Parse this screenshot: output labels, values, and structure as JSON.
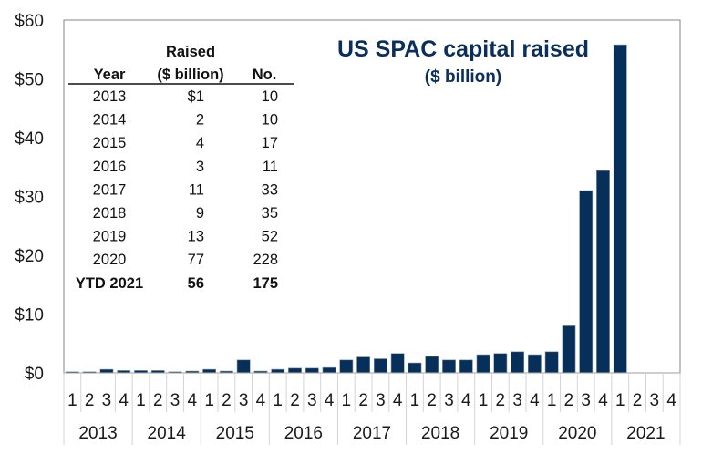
{
  "chart_data": {
    "type": "bar",
    "title": "US SPAC capital raised",
    "subtitle": "($ billion)",
    "xlabel": "",
    "ylabel": "",
    "ylim": [
      0,
      60
    ],
    "yticks": [
      0,
      10,
      20,
      30,
      40,
      50,
      60
    ],
    "ytick_labels": [
      "$0",
      "$10",
      "$20",
      "$30",
      "$40",
      "$50",
      "$60"
    ],
    "grid": false,
    "legend": "none",
    "bar_color": "#06305a",
    "years": [
      "2013",
      "2014",
      "2015",
      "2016",
      "2017",
      "2018",
      "2019",
      "2020",
      "2021"
    ],
    "quarter_labels": [
      "1",
      "2",
      "3",
      "4"
    ],
    "categories": [
      "2013 Q1",
      "2013 Q2",
      "2013 Q3",
      "2013 Q4",
      "2014 Q1",
      "2014 Q2",
      "2014 Q3",
      "2014 Q4",
      "2015 Q1",
      "2015 Q2",
      "2015 Q3",
      "2015 Q4",
      "2016 Q1",
      "2016 Q2",
      "2016 Q3",
      "2016 Q4",
      "2017 Q1",
      "2017 Q2",
      "2017 Q3",
      "2017 Q4",
      "2018 Q1",
      "2018 Q2",
      "2018 Q3",
      "2018 Q4",
      "2019 Q1",
      "2019 Q2",
      "2019 Q3",
      "2019 Q4",
      "2020 Q1",
      "2020 Q2",
      "2020 Q3",
      "2020 Q4",
      "2021 Q1",
      "2021 Q2",
      "2021 Q3",
      "2021 Q4"
    ],
    "values": [
      0.1,
      0.1,
      0.6,
      0.4,
      0.4,
      0.4,
      0.15,
      0.3,
      0.6,
      0.3,
      2.2,
      0.3,
      0.6,
      0.8,
      0.8,
      0.9,
      2.2,
      2.7,
      2.4,
      3.3,
      1.7,
      2.8,
      2.2,
      2.2,
      3.1,
      3.3,
      3.6,
      3.1,
      3.6,
      8.0,
      31.0,
      34.4,
      55.8,
      null,
      null,
      null
    ],
    "table": {
      "header_top": [
        "",
        "Raised",
        ""
      ],
      "header": [
        "Year",
        "($ billion)",
        "No."
      ],
      "rows": [
        {
          "year": "2013",
          "raised": "$1",
          "count": "10",
          "bold": false
        },
        {
          "year": "2014",
          "raised": "2",
          "count": "10",
          "bold": false
        },
        {
          "year": "2015",
          "raised": "4",
          "count": "17",
          "bold": false
        },
        {
          "year": "2016",
          "raised": "3",
          "count": "11",
          "bold": false
        },
        {
          "year": "2017",
          "raised": "11",
          "count": "33",
          "bold": false
        },
        {
          "year": "2018",
          "raised": "9",
          "count": "35",
          "bold": false
        },
        {
          "year": "2019",
          "raised": "13",
          "count": "52",
          "bold": false
        },
        {
          "year": "2020",
          "raised": "77",
          "count": "228",
          "bold": false
        },
        {
          "year": "YTD 2021",
          "raised": "56",
          "count": "175",
          "bold": true
        }
      ]
    }
  }
}
